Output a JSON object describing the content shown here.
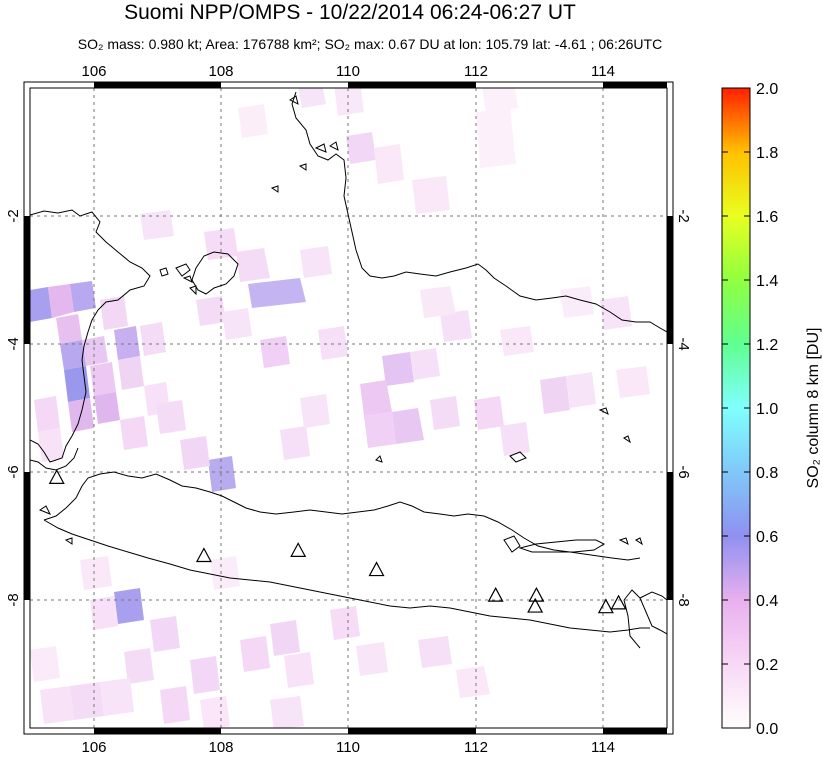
{
  "header": {
    "title": "Suomi NPP/OMPS - 10/22/2014 06:24-06:27 UT",
    "subtitle": "SO₂ mass: 0.980 kt; Area: 176788 km²; SO₂ max: 0.67 DU at lon: 105.79 lat: -4.61 ; 06:26UTC"
  },
  "map": {
    "lon_range": [
      105,
      115
    ],
    "lat_range": [
      -10,
      0
    ],
    "lon_ticks": [
      "106",
      "108",
      "110",
      "112",
      "114"
    ],
    "lat_ticks": [
      "-2",
      "-4",
      "-6",
      "-8"
    ],
    "grid": true,
    "volcano_marker": "triangle-icon",
    "volcanoes": [
      {
        "lon": 105.42,
        "lat": -6.1
      },
      {
        "lon": 107.73,
        "lat": -7.32
      },
      {
        "lon": 109.21,
        "lat": -7.24
      },
      {
        "lon": 110.44,
        "lat": -7.54
      },
      {
        "lon": 112.31,
        "lat": -7.94
      },
      {
        "lon": 112.95,
        "lat": -7.94
      },
      {
        "lon": 112.93,
        "lat": -8.11
      },
      {
        "lon": 114.04,
        "lat": -8.12
      },
      {
        "lon": 114.24,
        "lat": -8.06
      }
    ]
  },
  "colorbar": {
    "label": "SO₂ column 8 km [DU]",
    "ticks": [
      "0.0",
      "0.2",
      "0.4",
      "0.6",
      "0.8",
      "1.0",
      "1.2",
      "1.4",
      "1.6",
      "1.8",
      "2.0"
    ],
    "range": [
      0,
      2
    ],
    "colors": [
      "#fffefe",
      "#f8d8f6",
      "#e8b0ee",
      "#9090f0",
      "#80c8f8",
      "#80ffff",
      "#60ff90",
      "#90ff40",
      "#e8ff20",
      "#ffc000",
      "#ff6000",
      "#ff2000"
    ]
  }
}
